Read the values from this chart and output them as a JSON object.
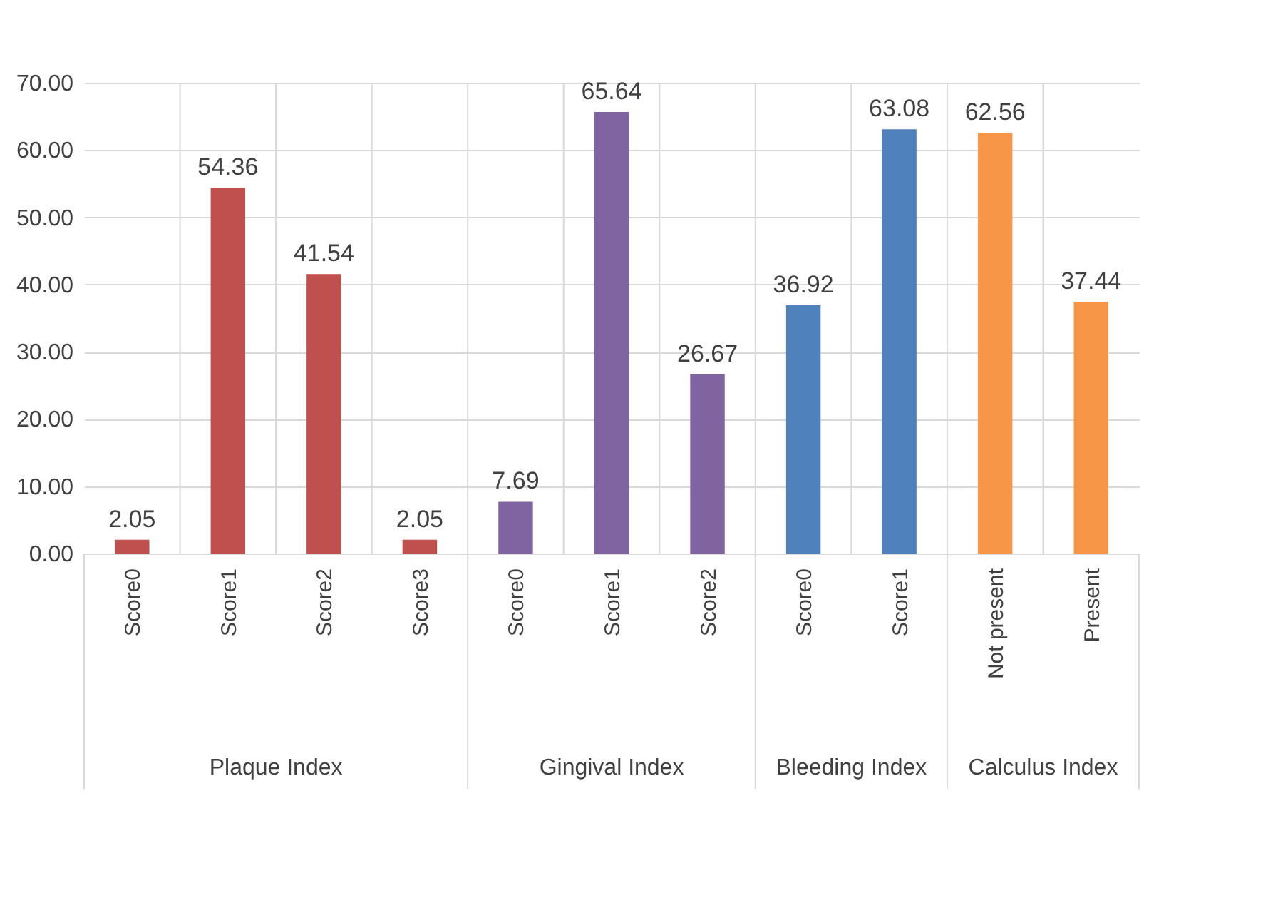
{
  "chart_data": {
    "type": "bar",
    "categories": [
      "Score0",
      "Score1",
      "Score2",
      "Score3",
      "Score0",
      "Score1",
      "Score2",
      "Score0",
      "Score1",
      "Not present",
      "Present"
    ],
    "values": [
      2.05,
      54.36,
      41.54,
      2.05,
      7.69,
      65.64,
      26.67,
      36.92,
      63.08,
      62.56,
      37.44
    ],
    "colors": [
      "#c0504d",
      "#c0504d",
      "#c0504d",
      "#c0504d",
      "#8064a2",
      "#8064a2",
      "#8064a2",
      "#4f81bd",
      "#4f81bd",
      "#f79646",
      "#f79646"
    ],
    "annotations": [
      "Plaque Index",
      "Gingival Index",
      "Bleeding Index",
      "Calculus Index"
    ],
    "ylim": [
      0,
      70
    ],
    "yticks": [
      {
        "value": 0,
        "label": "0.00"
      },
      {
        "value": 10,
        "label": "10.00"
      },
      {
        "value": 20,
        "label": "20.00"
      },
      {
        "value": 30,
        "label": "30.00"
      },
      {
        "value": 40,
        "label": "40.00"
      },
      {
        "value": 50,
        "label": "50.00"
      },
      {
        "value": 60,
        "label": "60.00"
      },
      {
        "value": 70,
        "label": "70.00"
      }
    ],
    "data_labels": true,
    "grid": true
  }
}
